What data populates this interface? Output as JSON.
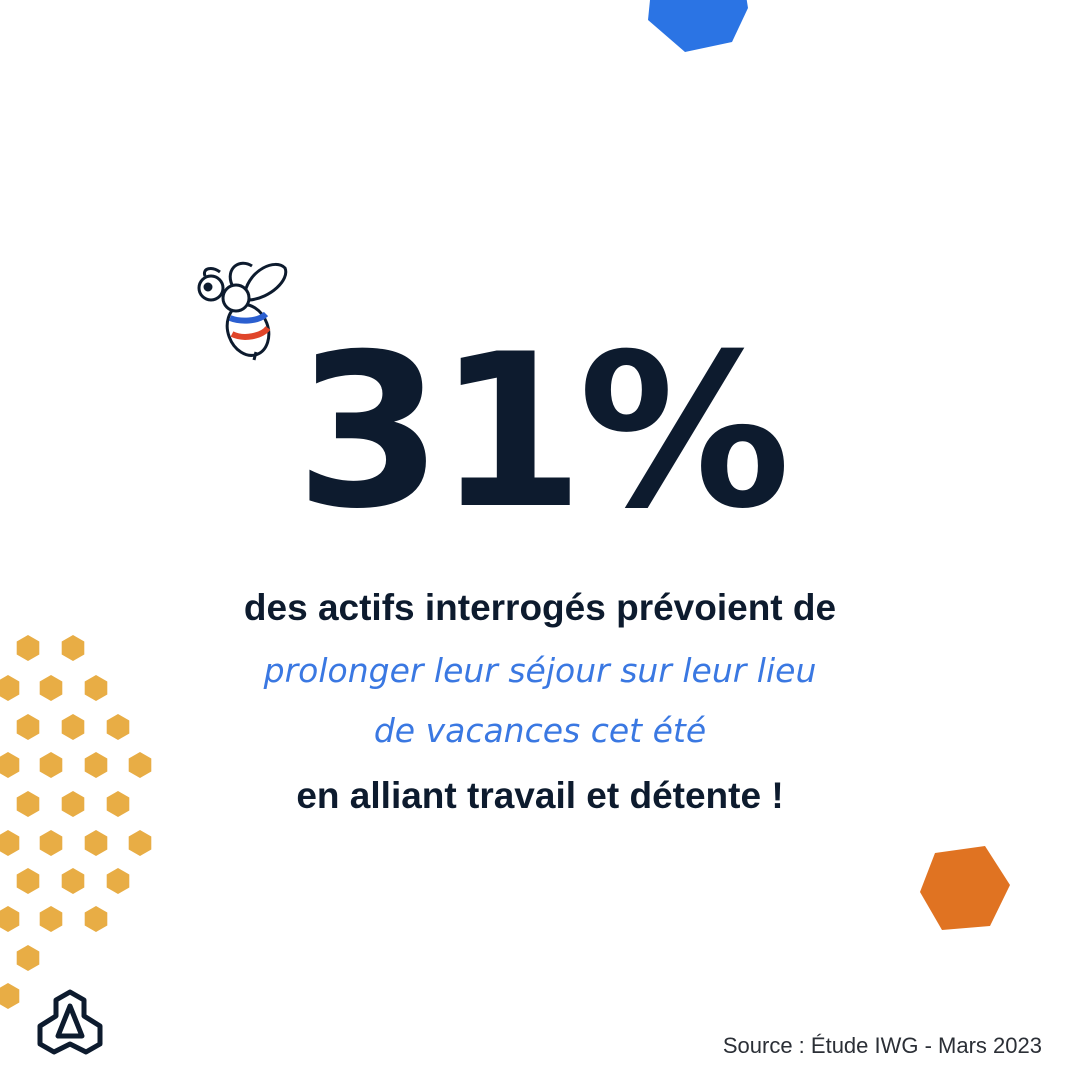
{
  "headline": {
    "figure": "31%"
  },
  "body": {
    "lines": [
      "des actifs interrogés prévoient de",
      "prolonger leur séjour sur leur lieu",
      "de vacances cet été",
      "en alliant travail et détente !"
    ]
  },
  "footer": {
    "source": "Source : Étude IWG - Mars 2023"
  }
}
